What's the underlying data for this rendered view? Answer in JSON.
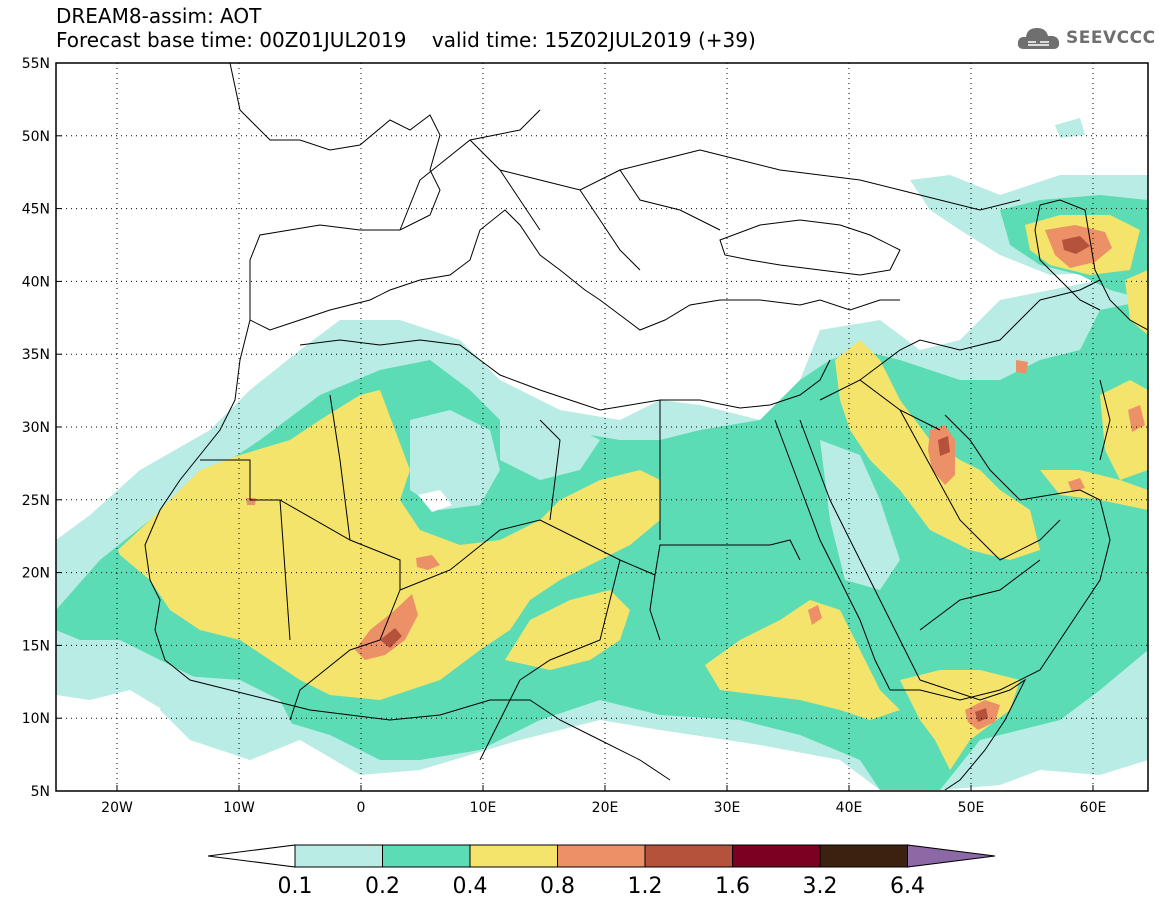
{
  "header": {
    "line1": "DREAM8-assim: AOT",
    "base_label": "Forecast base time: 00Z01JUL2019",
    "valid_label": "valid time: 15Z02JUL2019 (+39)"
  },
  "logo": {
    "text": "SEEVCCC",
    "icon": "cloud-logo-icon"
  },
  "axes": {
    "lat_labels": [
      "55N",
      "50N",
      "45N",
      "40N",
      "35N",
      "30N",
      "25N",
      "20N",
      "15N",
      "10N",
      "5N"
    ],
    "lon_labels": [
      "20W",
      "10W",
      "0",
      "10E",
      "20E",
      "30E",
      "40E",
      "50E",
      "60E"
    ]
  },
  "colorbar": {
    "ticks": [
      "0.1",
      "0.2",
      "0.4",
      "0.8",
      "1.2",
      "1.6",
      "3.2",
      "6.4"
    ],
    "colors": [
      "#ffffff",
      "#b8ece4",
      "#5cdcb4",
      "#f4e46c",
      "#ec9068",
      "#b4523c",
      "#7c0020",
      "#3c2010",
      "#8c68a4"
    ]
  }
}
